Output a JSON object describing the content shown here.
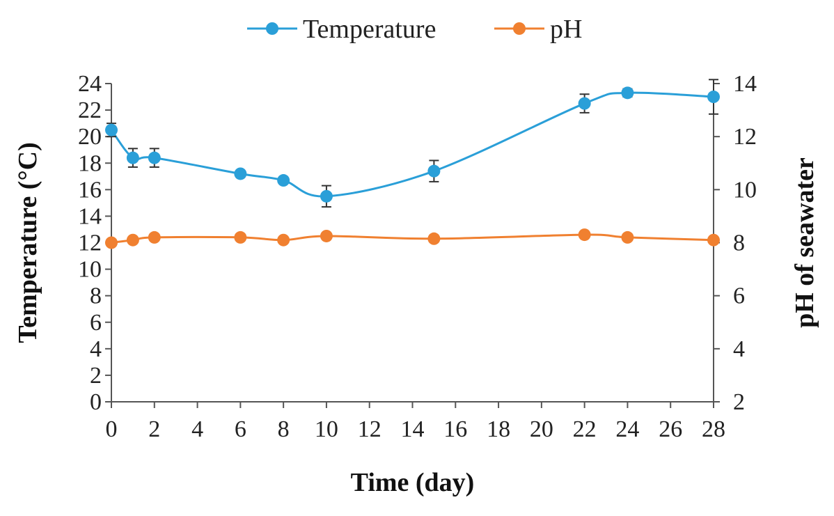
{
  "chart_data": {
    "type": "line",
    "x_values": [
      0,
      1,
      2,
      6,
      8,
      10,
      15,
      22,
      24,
      28
    ],
    "series": [
      {
        "name": "Temperature",
        "axis": "left",
        "color": "#2a9fd8",
        "values": [
          20.5,
          18.4,
          18.4,
          17.2,
          16.7,
          15.5,
          17.4,
          22.5,
          23.3,
          23.0
        ],
        "error": [
          0.5,
          0.7,
          0.7,
          0.2,
          0.2,
          0.8,
          0.8,
          0.7,
          0.3,
          1.3
        ]
      },
      {
        "name": "pH",
        "axis": "right",
        "color": "#f08030",
        "values": [
          8.0,
          8.1,
          8.2,
          8.2,
          8.1,
          8.25,
          8.15,
          8.3,
          8.2,
          8.1
        ],
        "error": [
          0,
          0,
          0,
          0,
          0,
          0,
          0,
          0,
          0,
          0
        ]
      }
    ],
    "xlabel": "Time (day)",
    "ylabel_left": "Temperature (°C)",
    "ylabel_right": "pH of seawater",
    "xlim": [
      0,
      28
    ],
    "ylim_left": [
      0,
      24
    ],
    "ylim_right": [
      2,
      14
    ],
    "x_ticks": [
      "0",
      "2",
      "4",
      "6",
      "8",
      "10",
      "12",
      "14",
      "16",
      "18",
      "20",
      "22",
      "24",
      "26",
      "28"
    ],
    "y_left_ticks": [
      "0",
      "2",
      "4",
      "6",
      "8",
      "10",
      "12",
      "14",
      "16",
      "18",
      "20",
      "22",
      "24"
    ],
    "y_right_ticks": [
      "2",
      "4",
      "6",
      "8",
      "10",
      "12",
      "14"
    ],
    "legend": {
      "position": "top-center",
      "entries": [
        "Temperature",
        "pH"
      ]
    },
    "grid": false
  }
}
